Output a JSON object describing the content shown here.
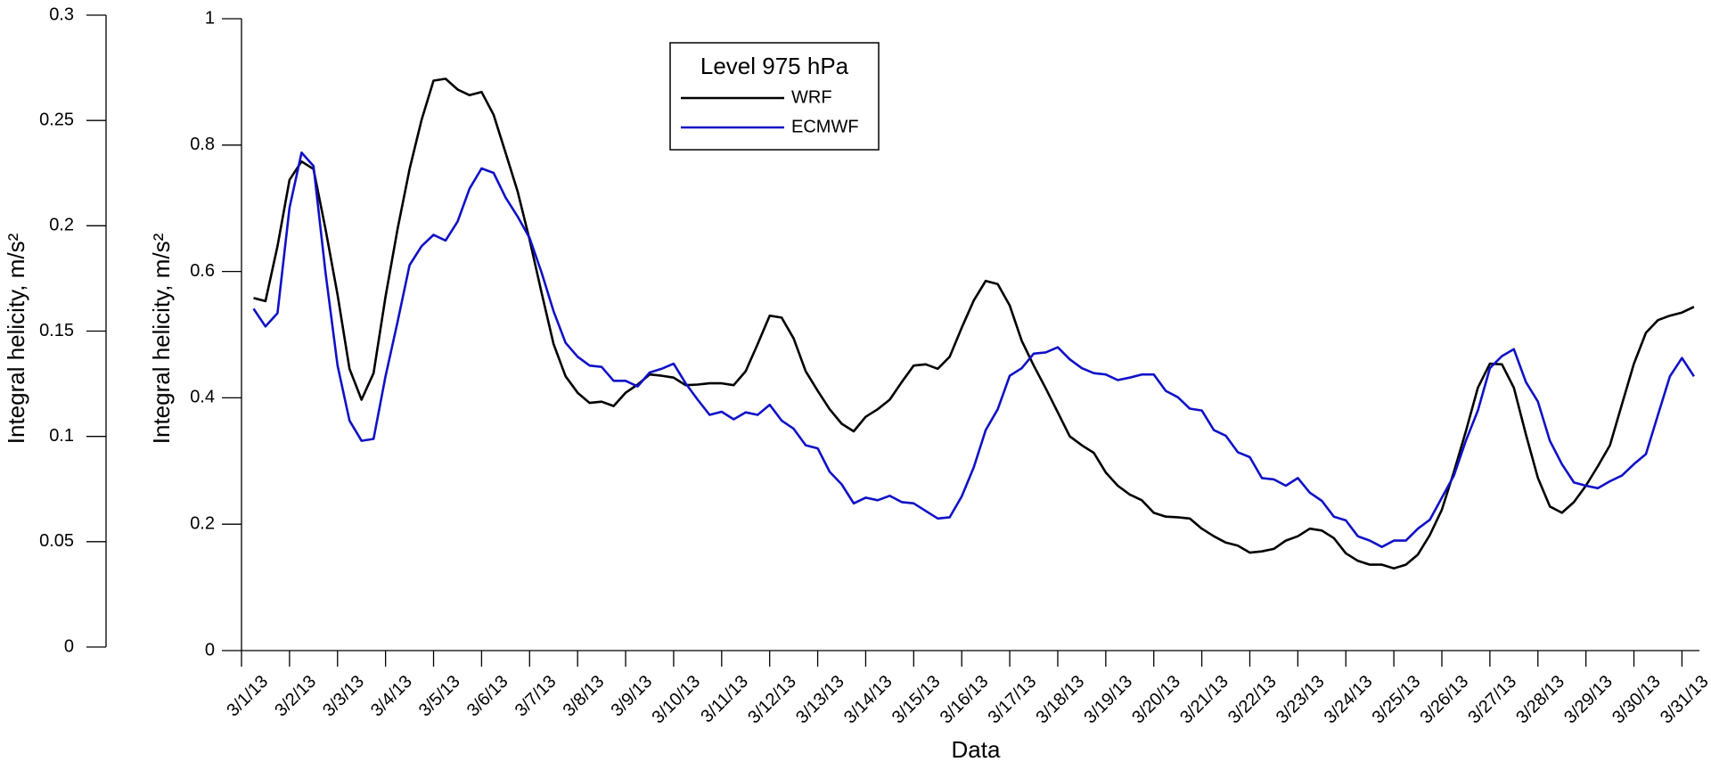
{
  "chart_data": {
    "type": "line",
    "x_label": "Data",
    "y_label": "Integral helicity, m/s²",
    "y2_label": "Integral helicity, m/s²",
    "legend_title": "Level 975 hPa",
    "legend_position": "upper center",
    "ylim": [
      0,
      1
    ],
    "yticks": [
      0,
      0.2,
      0.4,
      0.6,
      0.8,
      1
    ],
    "y2lim": [
      0,
      0.3
    ],
    "y2ticks": [
      0,
      0.05,
      0.1,
      0.15,
      0.2,
      0.25,
      0.3
    ],
    "categories": [
      "3/1/13",
      null,
      null,
      null,
      "3/2/13",
      null,
      null,
      null,
      "3/3/13",
      null,
      null,
      null,
      "3/4/13",
      null,
      null,
      null,
      "3/5/13",
      null,
      null,
      null,
      "3/6/13",
      null,
      null,
      null,
      "3/7/13",
      null,
      null,
      null,
      "3/8/13",
      null,
      null,
      null,
      "3/9/13",
      null,
      null,
      null,
      "3/10/13",
      null,
      null,
      null,
      "3/11/13",
      null,
      null,
      null,
      "3/12/13",
      null,
      null,
      null,
      "3/13/13",
      null,
      null,
      null,
      "3/14/13",
      null,
      null,
      null,
      "3/15/13",
      null,
      null,
      null,
      "3/16/13",
      null,
      null,
      null,
      "3/17/13",
      null,
      null,
      null,
      "3/18/13",
      null,
      null,
      null,
      "3/19/13",
      null,
      null,
      null,
      "3/20/13",
      null,
      null,
      null,
      "3/21/13",
      null,
      null,
      null,
      "3/22/13",
      null,
      null,
      null,
      "3/23/13",
      null,
      null,
      null,
      "3/24/13",
      null,
      null,
      null,
      "3/25/13",
      null,
      null,
      null,
      "3/26/13",
      null,
      null,
      null,
      "3/27/13",
      null,
      null,
      null,
      "3/28/13",
      null,
      null,
      null,
      "3/29/13",
      null,
      null,
      null,
      "3/30/13",
      null,
      null,
      null,
      "3/31/13",
      null
    ],
    "series": [
      {
        "name": "WRF",
        "color": "#000000",
        "values": [
          null,
          0.558,
          0.553,
          0.64,
          0.745,
          0.774,
          0.762,
          0.667,
          0.563,
          0.446,
          0.397,
          0.439,
          0.56,
          0.667,
          0.762,
          0.84,
          0.902,
          0.905,
          0.888,
          0.879,
          0.884,
          0.848,
          0.788,
          0.727,
          0.65,
          0.566,
          0.485,
          0.434,
          0.408,
          0.392,
          0.394,
          0.387,
          0.408,
          0.421,
          0.437,
          0.435,
          0.432,
          0.42,
          0.421,
          0.423,
          0.423,
          0.42,
          0.442,
          0.485,
          0.53,
          0.527,
          0.494,
          0.442,
          0.411,
          0.382,
          0.359,
          0.347,
          0.37,
          0.382,
          0.397,
          0.425,
          0.451,
          0.453,
          0.446,
          0.465,
          0.511,
          0.554,
          0.585,
          0.58,
          0.546,
          0.49,
          0.451,
          0.415,
          0.377,
          0.339,
          0.325,
          0.313,
          0.282,
          0.261,
          0.247,
          0.238,
          0.218,
          0.212,
          0.211,
          0.209,
          0.193,
          0.181,
          0.171,
          0.166,
          0.155,
          0.157,
          0.161,
          0.174,
          0.181,
          0.193,
          0.19,
          0.178,
          0.154,
          0.142,
          0.136,
          0.136,
          0.13,
          0.136,
          0.152,
          0.183,
          0.223,
          0.283,
          0.347,
          0.416,
          0.454,
          0.453,
          0.416,
          0.342,
          0.273,
          0.228,
          0.218,
          0.235,
          0.261,
          0.292,
          0.325,
          0.39,
          0.454,
          0.503,
          0.523,
          0.53,
          0.535,
          0.544
        ]
      },
      {
        "name": "ECMWF",
        "color": "#1010c8",
        "values": [
          null,
          0.541,
          0.513,
          0.534,
          0.701,
          0.788,
          0.767,
          0.598,
          0.451,
          0.364,
          0.332,
          0.335,
          0.434,
          0.52,
          0.61,
          0.64,
          0.658,
          0.649,
          0.679,
          0.731,
          0.763,
          0.756,
          0.717,
          0.687,
          0.653,
          0.598,
          0.537,
          0.487,
          0.465,
          0.451,
          0.449,
          0.427,
          0.427,
          0.418,
          0.44,
          0.446,
          0.454,
          0.423,
          0.397,
          0.373,
          0.378,
          0.366,
          0.377,
          0.373,
          0.389,
          0.364,
          0.351,
          0.325,
          0.32,
          0.283,
          0.263,
          0.233,
          0.242,
          0.238,
          0.245,
          0.235,
          0.233,
          0.221,
          0.209,
          0.211,
          0.244,
          0.29,
          0.349,
          0.382,
          0.435,
          0.447,
          0.47,
          0.472,
          0.48,
          0.461,
          0.447,
          0.439,
          0.437,
          0.428,
          0.432,
          0.437,
          0.437,
          0.411,
          0.401,
          0.383,
          0.38,
          0.349,
          0.34,
          0.314,
          0.306,
          0.273,
          0.271,
          0.261,
          0.273,
          0.25,
          0.237,
          0.212,
          0.206,
          0.181,
          0.174,
          0.164,
          0.174,
          0.174,
          0.193,
          0.207,
          0.242,
          0.277,
          0.332,
          0.38,
          0.447,
          0.466,
          0.477,
          0.425,
          0.394,
          0.332,
          0.295,
          0.266,
          0.261,
          0.257,
          0.268,
          0.277,
          0.295,
          0.311,
          0.373,
          0.434,
          0.463,
          0.434
        ]
      }
    ]
  }
}
